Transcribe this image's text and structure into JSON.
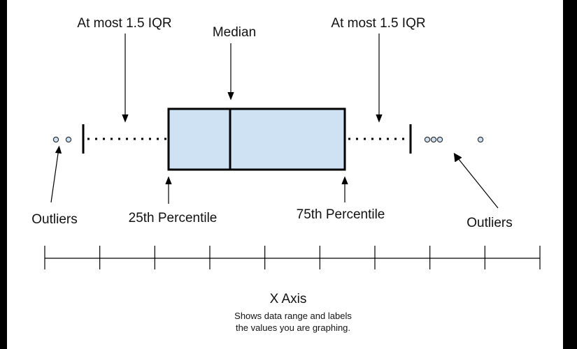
{
  "labels": {
    "whisker_left": "At most 1.5 IQR",
    "median": "Median",
    "whisker_right": "At most 1.5 IQR",
    "outliers_left": "Outliers",
    "percentile_25": "25th Percentile",
    "percentile_75": "75th Percentile",
    "outliers_right": "Outliers",
    "axis_title": "X Axis",
    "axis_caption_line1": "Shows data range and labels",
    "axis_caption_line2": "the values you are graphing."
  },
  "colors": {
    "frame": "#000000",
    "panel": "#ffffff",
    "box_fill": "#cfe2f3",
    "stroke": "#000000",
    "outlier_fill": "#cfe2f3",
    "text": "#111111"
  },
  "axis": {
    "tick_count": 10
  }
}
